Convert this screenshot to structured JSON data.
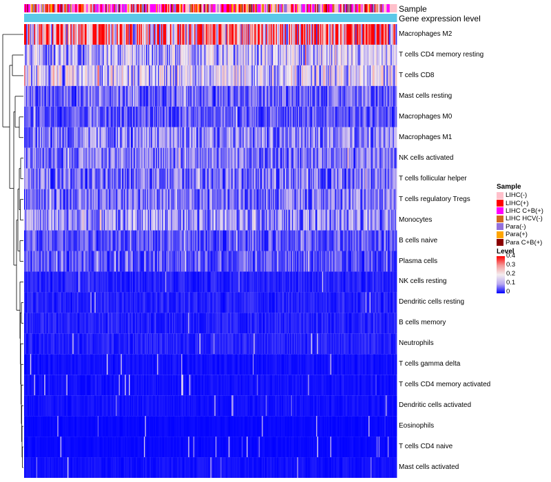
{
  "chart_data": {
    "type": "heatmap",
    "title": "",
    "annotation_tracks": [
      "Sample",
      "Gene expression level"
    ],
    "rows": [
      {
        "name": "Macrophages M2",
        "mean": 0.3
      },
      {
        "name": "T cells CD4 memory resting",
        "mean": 0.13
      },
      {
        "name": "T cells CD8",
        "mean": 0.15
      },
      {
        "name": "Mast cells resting",
        "mean": 0.06
      },
      {
        "name": "Macrophages M0",
        "mean": 0.05
      },
      {
        "name": "Macrophages M1",
        "mean": 0.09
      },
      {
        "name": "NK cells activated",
        "mean": 0.07
      },
      {
        "name": "T cells follicular helper",
        "mean": 0.07
      },
      {
        "name": "T cells regulatory  Tregs",
        "mean": 0.07
      },
      {
        "name": "Monocytes",
        "mean": 0.1
      },
      {
        "name": "B cells naive",
        "mean": 0.05
      },
      {
        "name": "Plasma cells",
        "mean": 0.05
      },
      {
        "name": "NK cells resting",
        "mean": 0.02
      },
      {
        "name": "Dendritic cells resting",
        "mean": 0.02
      },
      {
        "name": "B cells memory",
        "mean": 0.02
      },
      {
        "name": "Neutrophils",
        "mean": 0.02
      },
      {
        "name": "T cells gamma delta",
        "mean": 0.01
      },
      {
        "name": "T cells CD4 memory activated",
        "mean": 0.01
      },
      {
        "name": "Dendritic cells activated",
        "mean": 0.01
      },
      {
        "name": "Eosinophils",
        "mean": 0.005
      },
      {
        "name": "T cells CD4 naive",
        "mean": 0.005
      },
      {
        "name": "Mast cells activated",
        "mean": 0.01
      }
    ],
    "legend_sample": {
      "title": "Sample",
      "items": [
        {
          "label": "LIHC(-)",
          "color": "#ffc0cb"
        },
        {
          "label": "LIHC(+)",
          "color": "#ff0000"
        },
        {
          "label": "LIHC C+B(+)",
          "color": "#ff00ff"
        },
        {
          "label": "LIHC HCV(-)",
          "color": "#d2691e"
        },
        {
          "label": "Para(-)",
          "color": "#9370db"
        },
        {
          "label": "Para(+)",
          "color": "#ffa500"
        },
        {
          "label": "Para C+B(+)",
          "color": "#8b0000"
        }
      ]
    },
    "legend_level": {
      "title": "Level",
      "ticks": [
        "0.4",
        "0.3",
        "0.2",
        "0.1",
        "0"
      ],
      "range": [
        0,
        0.4
      ]
    },
    "gene_expression_color": "#5bc8e8",
    "n_columns": 370
  }
}
